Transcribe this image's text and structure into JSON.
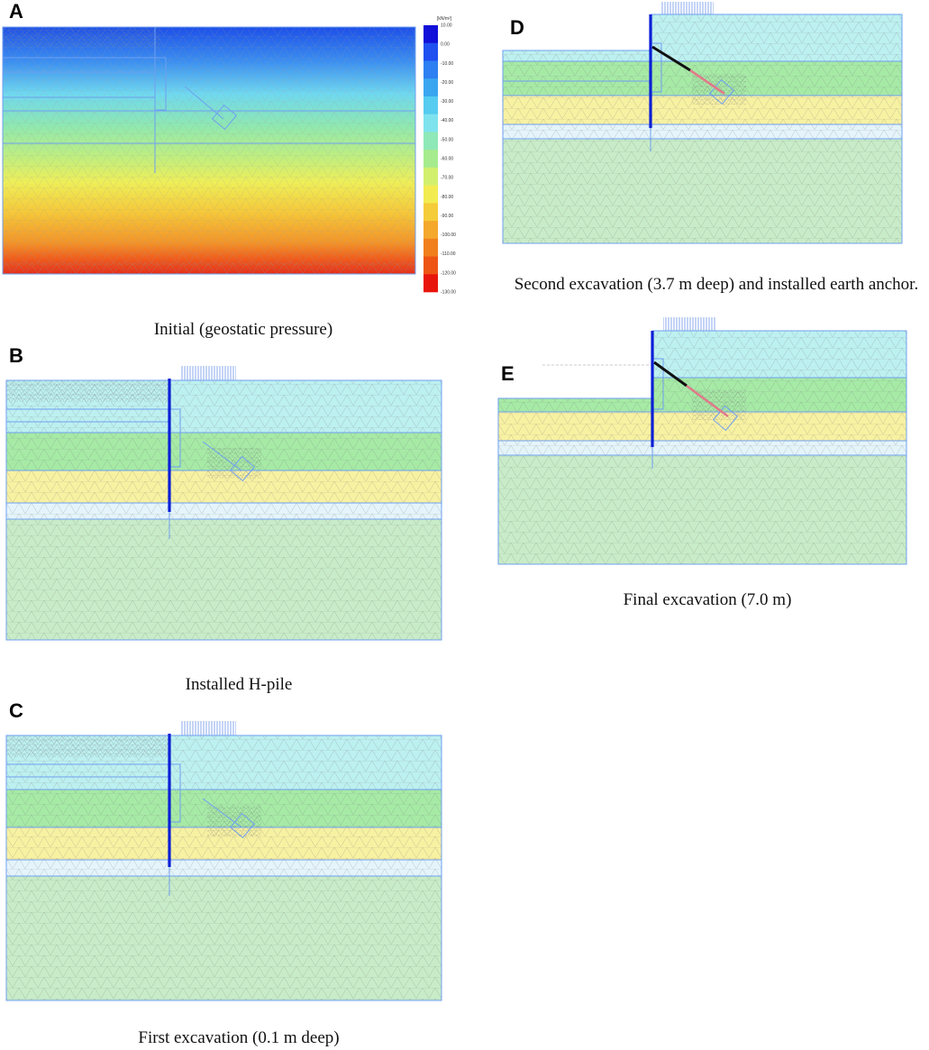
{
  "figure": {
    "panels": [
      {
        "id": "A",
        "letter": "A",
        "caption": "Initial (geostatic pressure)"
      },
      {
        "id": "B",
        "letter": "B",
        "caption": "Installed H-pile"
      },
      {
        "id": "C",
        "letter": "C",
        "caption": "First excavation (0.1 m deep)"
      },
      {
        "id": "D",
        "letter": "D",
        "caption": "Second excavation (3.7 m deep) and installed earth anchor."
      },
      {
        "id": "E",
        "letter": "E",
        "caption": "Final excavation (7.0 m)"
      }
    ],
    "legend": {
      "unit": "[kN/m²]",
      "ticks": [
        "10.00",
        "0.00",
        "-10.00",
        "-20.00",
        "-30.00",
        "-40.00",
        "-50.00",
        "-60.00",
        "-70.00",
        "-80.00",
        "-90.00",
        "-100.00",
        "-110.00",
        "-120.00",
        "-130.00"
      ],
      "colors": [
        "#1010d8",
        "#2050f0",
        "#2d7ff2",
        "#3aa6f0",
        "#55ccf0",
        "#7fe3ee",
        "#8fe8b8",
        "#a6ec8e",
        "#d2f06e",
        "#f2ec50",
        "#f5cc3a",
        "#f4a82c",
        "#f17f1e",
        "#ee5515",
        "#e8150c"
      ]
    },
    "colors": {
      "soil_top": "#bdf0f0",
      "soil_second": "#a6eaa6",
      "soil_third": "#f7f1a2",
      "soil_thin": "#e4f4fa",
      "soil_bottom": "#c8ecc8",
      "pile": "#0b1fd6",
      "anchor_free": "#111111",
      "anchor_grout": "#e07a8a",
      "boundary": "#6f9ff0"
    }
  }
}
